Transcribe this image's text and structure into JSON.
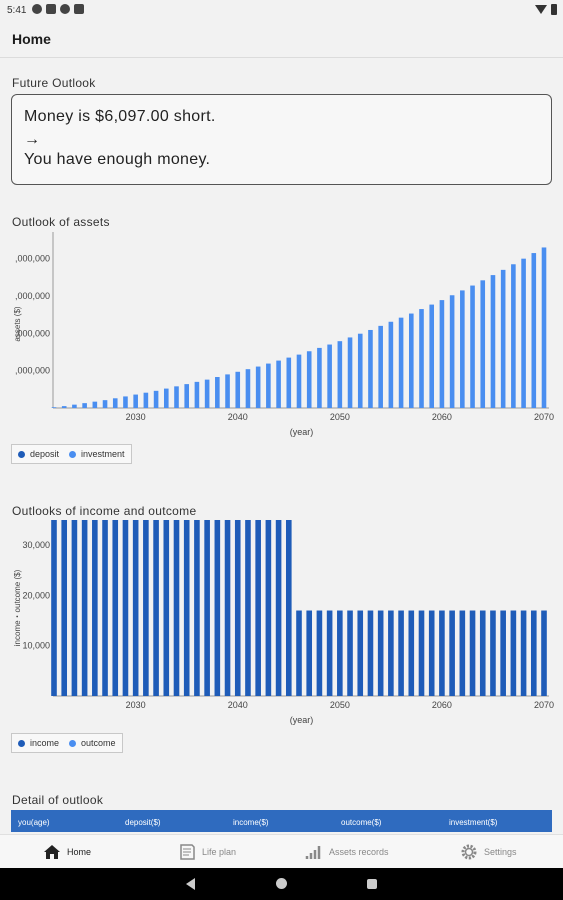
{
  "status": {
    "time": "5:41"
  },
  "appbar": {
    "title": "Home"
  },
  "future_outlook": {
    "title": "Future Outlook",
    "line1": "Money is $6,097.00 short.",
    "arrow": "→",
    "line2": "You have enough money."
  },
  "assets_chart": {
    "title": "Outlook of assets",
    "legend": [
      {
        "label": "deposit",
        "color": "#1f5cb8"
      },
      {
        "label": "investment",
        "color": "#4a8ef0"
      }
    ]
  },
  "income_chart": {
    "title": "Outlooks of income and outcome",
    "legend": [
      {
        "label": "income",
        "color": "#1f5cb8"
      },
      {
        "label": "outcome",
        "color": "#4a8ef0"
      }
    ]
  },
  "detail": {
    "title": "Detail of outlook",
    "columns": [
      "you(age)",
      "deposit($)",
      "income($)",
      "outcome($)",
      "investment($)"
    ]
  },
  "nav": {
    "items": [
      {
        "label": "Home",
        "icon": "home-icon",
        "active": true
      },
      {
        "label": "Life plan",
        "icon": "book-icon",
        "active": false
      },
      {
        "label": "Assets records",
        "icon": "bar-chart-icon",
        "active": false
      },
      {
        "label": "Settings",
        "icon": "gear-icon",
        "active": false
      }
    ]
  },
  "chart_data": [
    {
      "type": "bar",
      "title": "Outlook of assets",
      "xlabel": "(year)",
      "ylabel": "assets ($)",
      "x_ticks": [
        "2030",
        "2040",
        "2050",
        "2060",
        "2070"
      ],
      "y_ticks": [
        ",000,000",
        ",000,000",
        ",000,000",
        ",000,000"
      ],
      "x_range": [
        2022,
        2070
      ],
      "y_max_units": 4.5,
      "x": [
        2022,
        2023,
        2024,
        2025,
        2026,
        2027,
        2028,
        2029,
        2030,
        2031,
        2032,
        2033,
        2034,
        2035,
        2036,
        2037,
        2038,
        2039,
        2040,
        2041,
        2042,
        2043,
        2044,
        2045,
        2046,
        2047,
        2048,
        2049,
        2050,
        2051,
        2052,
        2053,
        2054,
        2055,
        2056,
        2057,
        2058,
        2059,
        2060,
        2061,
        2062,
        2063,
        2064,
        2065,
        2066,
        2067,
        2068,
        2069,
        2070
      ],
      "series": [
        {
          "name": "investment",
          "values": [
            0.02,
            0.05,
            0.09,
            0.13,
            0.17,
            0.21,
            0.26,
            0.31,
            0.36,
            0.41,
            0.46,
            0.52,
            0.58,
            0.64,
            0.7,
            0.76,
            0.83,
            0.9,
            0.97,
            1.04,
            1.11,
            1.19,
            1.27,
            1.35,
            1.43,
            1.52,
            1.61,
            1.7,
            1.79,
            1.89,
            1.99,
            2.09,
            2.2,
            2.31,
            2.42,
            2.53,
            2.65,
            2.77,
            2.89,
            3.02,
            3.15,
            3.28,
            3.42,
            3.56,
            3.7,
            3.85,
            4.0,
            4.15,
            4.3
          ]
        }
      ]
    },
    {
      "type": "bar",
      "title": "Outlooks of income and outcome",
      "xlabel": "(year)",
      "ylabel": "income・outcome ($)",
      "x_ticks": [
        "2030",
        "2040",
        "2050",
        "2060",
        "2070"
      ],
      "y_ticks": [
        "30,000",
        "20,000",
        "10,000"
      ],
      "x_range": [
        2022,
        2070
      ],
      "ylim": [
        0,
        35000
      ],
      "x": [
        2022,
        2023,
        2024,
        2025,
        2026,
        2027,
        2028,
        2029,
        2030,
        2031,
        2032,
        2033,
        2034,
        2035,
        2036,
        2037,
        2038,
        2039,
        2040,
        2041,
        2042,
        2043,
        2044,
        2045,
        2046,
        2047,
        2048,
        2049,
        2050,
        2051,
        2052,
        2053,
        2054,
        2055,
        2056,
        2057,
        2058,
        2059,
        2060,
        2061,
        2062,
        2063,
        2064,
        2065,
        2066,
        2067,
        2068,
        2069,
        2070
      ],
      "series": [
        {
          "name": "income",
          "values": [
            35000,
            35000,
            35000,
            35000,
            35000,
            35000,
            35000,
            35000,
            35000,
            35000,
            35000,
            35000,
            35000,
            35000,
            35000,
            35000,
            35000,
            35000,
            35000,
            35000,
            35000,
            35000,
            35000,
            35000,
            17000,
            17000,
            17000,
            17000,
            17000,
            17000,
            17000,
            17000,
            17000,
            17000,
            17000,
            17000,
            17000,
            17000,
            17000,
            17000,
            17000,
            17000,
            17000,
            17000,
            17000,
            17000,
            17000,
            17000,
            17000
          ]
        }
      ]
    }
  ]
}
